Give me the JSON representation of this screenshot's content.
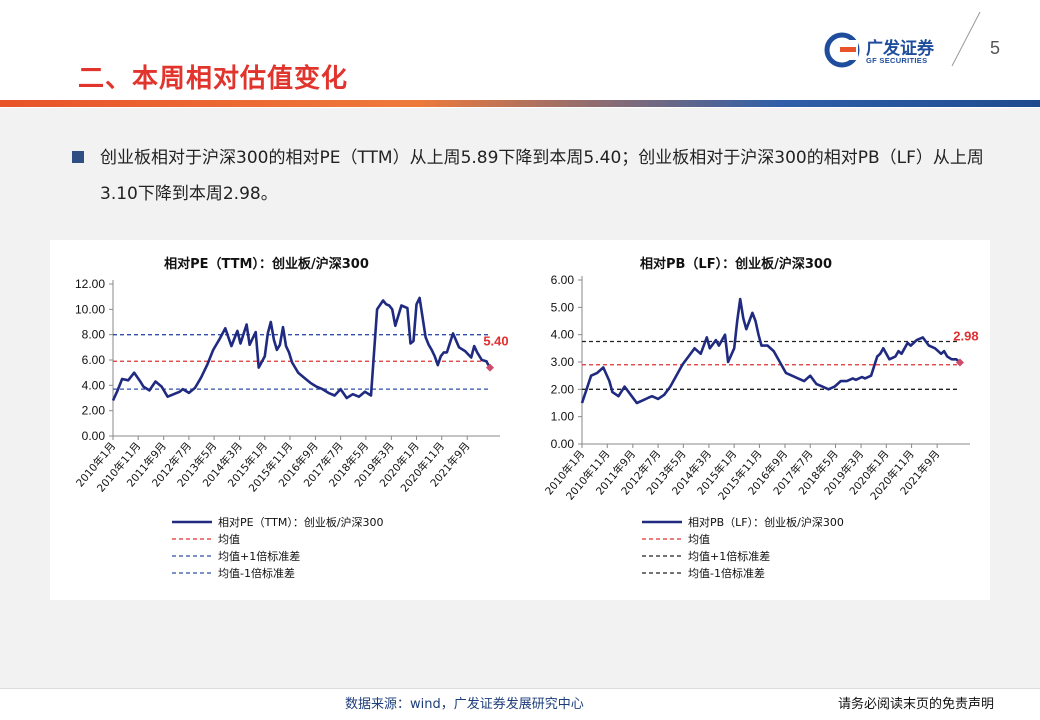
{
  "header": {
    "section_title": "二、本周相对估值变化",
    "logo_cn": "广发证券",
    "logo_en": "GF SECURITIES",
    "page_number": "5"
  },
  "body": {
    "paragraph": "创业板相对于沪深300的相对PE（TTM）从上周5.89下降到本周5.40；创业板相对于沪深300的相对PB（LF）从上周3.10下降到本周2.98。"
  },
  "footer": {
    "source": "数据来源：wind，广发证券发展研究中心",
    "disclaimer": "请务必阅读末页的免责声明"
  },
  "colors": {
    "series": "#1f2a80",
    "mean": "#e03030",
    "pe_band": "#2f4fa8",
    "pb_band": "#222222",
    "accent": "#e0342c",
    "brand": "#1d4d9c"
  },
  "chart_data": [
    {
      "type": "line",
      "title": "相对PE（TTM）：创业板/沪深300",
      "ylim": [
        0,
        12
      ],
      "yticks": [
        "0.00",
        "2.00",
        "4.00",
        "6.00",
        "8.00",
        "10.00",
        "12.00"
      ],
      "x_range": [
        2010.0,
        2022.75
      ],
      "xticks": [
        "2010年1月",
        "2010年11月",
        "2011年9月",
        "2012年7月",
        "2013年5月",
        "2014年3月",
        "2015年1月",
        "2015年11月",
        "2016年9月",
        "2017年7月",
        "2018年5月",
        "2019年3月",
        "2020年1月",
        "2020年11月",
        "2021年9月"
      ],
      "xtick_values": [
        2010.0,
        2010.83,
        2011.67,
        2012.5,
        2013.33,
        2014.17,
        2015.0,
        2015.83,
        2016.67,
        2017.5,
        2018.33,
        2019.17,
        2020.0,
        2020.83,
        2021.67
      ],
      "annotation": "5.40",
      "mean": 5.9,
      "plus_1sd": 8.0,
      "minus_1sd": 3.7,
      "legend": [
        "相对PE（TTM）：创业板/沪深300",
        "均值",
        "均值+1倍标准差",
        "均值-1倍标准差"
      ],
      "series": [
        {
          "name": "相对PE（TTM）：创业板/沪深300",
          "x": [
            2010.0,
            2010.15,
            2010.3,
            2010.5,
            2010.7,
            2010.9,
            2011.0,
            2011.2,
            2011.4,
            2011.6,
            2011.8,
            2012.0,
            2012.2,
            2012.3,
            2012.5,
            2012.7,
            2012.9,
            2013.1,
            2013.3,
            2013.5,
            2013.7,
            2013.9,
            2014.1,
            2014.2,
            2014.4,
            2014.5,
            2014.7,
            2014.8,
            2015.0,
            2015.1,
            2015.2,
            2015.3,
            2015.4,
            2015.5,
            2015.6,
            2015.7,
            2015.8,
            2015.9,
            2016.1,
            2016.3,
            2016.5,
            2016.7,
            2016.9,
            2017.1,
            2017.3,
            2017.5,
            2017.7,
            2017.9,
            2018.1,
            2018.3,
            2018.5,
            2018.7,
            2018.9,
            2019.0,
            2019.1,
            2019.2,
            2019.3,
            2019.5,
            2019.7,
            2019.8,
            2019.9,
            2020.0,
            2020.1,
            2020.3,
            2020.4,
            2020.5,
            2020.6,
            2020.7,
            2020.8,
            2020.9,
            2021.0,
            2021.2,
            2021.4,
            2021.6,
            2021.8,
            2021.9,
            2022.0,
            2022.15,
            2022.3,
            2022.42
          ],
          "y": [
            2.8,
            3.6,
            4.5,
            4.4,
            5.0,
            4.3,
            3.9,
            3.6,
            4.3,
            3.9,
            3.1,
            3.3,
            3.5,
            3.7,
            3.4,
            3.8,
            4.6,
            5.6,
            6.8,
            7.6,
            8.5,
            7.1,
            8.3,
            7.3,
            8.8,
            7.2,
            8.2,
            5.4,
            6.3,
            8.1,
            9.0,
            7.6,
            6.8,
            7.2,
            8.6,
            7.1,
            6.6,
            5.8,
            5.0,
            4.6,
            4.2,
            3.9,
            3.7,
            3.4,
            3.2,
            3.7,
            3.0,
            3.3,
            3.1,
            3.5,
            3.2,
            10.0,
            10.7,
            10.4,
            10.3,
            10.0,
            8.7,
            10.3,
            10.1,
            7.3,
            7.5,
            10.4,
            10.9,
            7.8,
            7.2,
            6.8,
            6.3,
            5.6,
            6.3,
            6.6,
            6.6,
            8.1,
            7.0,
            6.7,
            6.2,
            7.1,
            6.6,
            6.0,
            5.9,
            5.4
          ]
        }
      ]
    },
    {
      "type": "line",
      "title": "相对PB（LF）：创业板/沪深300",
      "ylim": [
        0,
        6
      ],
      "yticks": [
        "0.00",
        "1.00",
        "2.00",
        "3.00",
        "4.00",
        "5.00",
        "6.00"
      ],
      "x_range": [
        2010.0,
        2022.75
      ],
      "xticks": [
        "2010年1月",
        "2010年11月",
        "2011年9月",
        "2012年7月",
        "2013年5月",
        "2014年3月",
        "2015年1月",
        "2015年11月",
        "2016年9月",
        "2017年7月",
        "2018年5月",
        "2019年3月",
        "2020年1月",
        "2020年11月",
        "2021年9月"
      ],
      "xtick_values": [
        2010.0,
        2010.83,
        2011.67,
        2012.5,
        2013.33,
        2014.17,
        2015.0,
        2015.83,
        2016.67,
        2017.5,
        2018.33,
        2019.17,
        2020.0,
        2020.83,
        2021.67
      ],
      "annotation": "2.98",
      "mean": 2.9,
      "plus_1sd": 3.75,
      "minus_1sd": 2.0,
      "legend": [
        "相对PB（LF）：创业板/沪深300",
        "均值",
        "均值+1倍标准差",
        "均值-1倍标准差"
      ],
      "series": [
        {
          "name": "相对PB（LF）：创业板/沪深300",
          "x": [
            2010.0,
            2010.15,
            2010.3,
            2010.5,
            2010.7,
            2010.9,
            2011.0,
            2011.2,
            2011.4,
            2011.6,
            2011.8,
            2012.0,
            2012.2,
            2012.3,
            2012.5,
            2012.7,
            2012.9,
            2013.1,
            2013.3,
            2013.5,
            2013.7,
            2013.9,
            2014.1,
            2014.2,
            2014.4,
            2014.5,
            2014.7,
            2014.8,
            2015.0,
            2015.1,
            2015.2,
            2015.3,
            2015.4,
            2015.5,
            2015.6,
            2015.7,
            2015.8,
            2015.9,
            2016.1,
            2016.3,
            2016.5,
            2016.7,
            2016.9,
            2017.1,
            2017.3,
            2017.5,
            2017.7,
            2017.9,
            2018.1,
            2018.3,
            2018.5,
            2018.7,
            2018.9,
            2019.0,
            2019.1,
            2019.2,
            2019.3,
            2019.5,
            2019.7,
            2019.8,
            2019.9,
            2020.0,
            2020.1,
            2020.3,
            2020.4,
            2020.5,
            2020.6,
            2020.7,
            2020.8,
            2020.9,
            2021.0,
            2021.2,
            2021.4,
            2021.6,
            2021.8,
            2021.9,
            2022.0,
            2022.15,
            2022.3,
            2022.42
          ],
          "y": [
            1.5,
            2.0,
            2.5,
            2.6,
            2.8,
            2.3,
            1.9,
            1.75,
            2.1,
            1.8,
            1.5,
            1.6,
            1.7,
            1.75,
            1.65,
            1.8,
            2.1,
            2.5,
            2.9,
            3.2,
            3.5,
            3.3,
            3.9,
            3.5,
            3.8,
            3.6,
            4.0,
            3.0,
            3.5,
            4.5,
            5.3,
            4.6,
            4.2,
            4.5,
            4.8,
            4.5,
            4.0,
            3.6,
            3.6,
            3.4,
            3.0,
            2.6,
            2.5,
            2.4,
            2.3,
            2.5,
            2.2,
            2.1,
            2.0,
            2.1,
            2.3,
            2.3,
            2.4,
            2.35,
            2.4,
            2.45,
            2.4,
            2.5,
            3.2,
            3.3,
            3.5,
            3.3,
            3.1,
            3.2,
            3.4,
            3.3,
            3.5,
            3.7,
            3.6,
            3.7,
            3.8,
            3.9,
            3.6,
            3.5,
            3.3,
            3.4,
            3.2,
            3.1,
            3.1,
            2.98
          ]
        }
      ]
    }
  ]
}
